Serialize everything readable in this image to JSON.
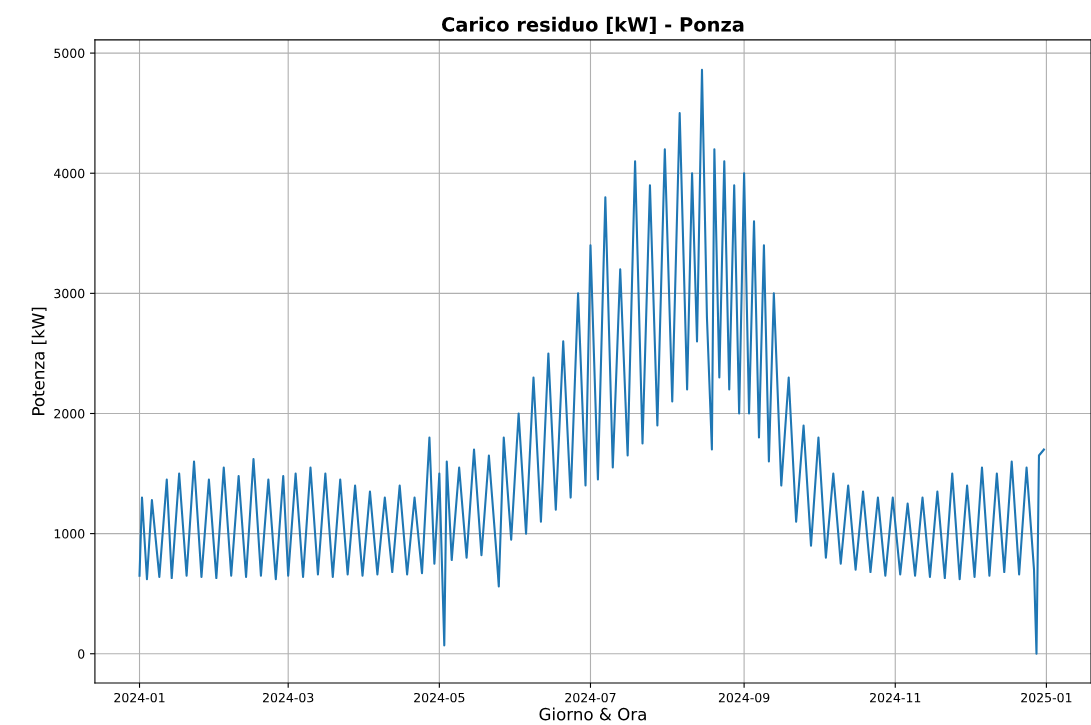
{
  "chart_data": {
    "type": "line",
    "title": "Carico residuo [kW] - Ponza",
    "xlabel": "Giorno & Ora",
    "ylabel": "Potenza [kW]",
    "x": [
      "2024-01-01",
      "2024-01-02",
      "2024-01-04",
      "2024-01-06",
      "2024-01-09",
      "2024-01-12",
      "2024-01-14",
      "2024-01-17",
      "2024-01-20",
      "2024-01-23",
      "2024-01-26",
      "2024-01-29",
      "2024-02-01",
      "2024-02-04",
      "2024-02-07",
      "2024-02-10",
      "2024-02-13",
      "2024-02-16",
      "2024-02-19",
      "2024-02-22",
      "2024-02-25",
      "2024-02-28",
      "2024-03-01",
      "2024-03-04",
      "2024-03-07",
      "2024-03-10",
      "2024-03-13",
      "2024-03-16",
      "2024-03-19",
      "2024-03-22",
      "2024-03-25",
      "2024-03-28",
      "2024-03-31",
      "2024-04-03",
      "2024-04-06",
      "2024-04-09",
      "2024-04-12",
      "2024-04-15",
      "2024-04-18",
      "2024-04-21",
      "2024-04-24",
      "2024-04-27",
      "2024-04-29",
      "2024-05-01",
      "2024-05-03",
      "2024-05-04",
      "2024-05-06",
      "2024-05-09",
      "2024-05-12",
      "2024-05-15",
      "2024-05-18",
      "2024-05-21",
      "2024-05-24",
      "2024-05-25",
      "2024-05-27",
      "2024-05-30",
      "2024-06-02",
      "2024-06-05",
      "2024-06-08",
      "2024-06-11",
      "2024-06-14",
      "2024-06-17",
      "2024-06-20",
      "2024-06-23",
      "2024-06-26",
      "2024-06-29",
      "2024-07-01",
      "2024-07-04",
      "2024-07-07",
      "2024-07-10",
      "2024-07-13",
      "2024-07-16",
      "2024-07-19",
      "2024-07-22",
      "2024-07-25",
      "2024-07-28",
      "2024-07-31",
      "2024-08-03",
      "2024-08-06",
      "2024-08-09",
      "2024-08-11",
      "2024-08-13",
      "2024-08-15",
      "2024-08-17",
      "2024-08-19",
      "2024-08-20",
      "2024-08-22",
      "2024-08-24",
      "2024-08-26",
      "2024-08-28",
      "2024-08-30",
      "2024-09-01",
      "2024-09-03",
      "2024-09-05",
      "2024-09-07",
      "2024-09-09",
      "2024-09-11",
      "2024-09-13",
      "2024-09-16",
      "2024-09-19",
      "2024-09-22",
      "2024-09-25",
      "2024-09-28",
      "2024-10-01",
      "2024-10-04",
      "2024-10-07",
      "2024-10-10",
      "2024-10-13",
      "2024-10-16",
      "2024-10-19",
      "2024-10-22",
      "2024-10-25",
      "2024-10-28",
      "2024-10-31",
      "2024-11-03",
      "2024-11-06",
      "2024-11-09",
      "2024-11-12",
      "2024-11-15",
      "2024-11-18",
      "2024-11-21",
      "2024-11-24",
      "2024-11-27",
      "2024-11-30",
      "2024-12-03",
      "2024-12-06",
      "2024-12-09",
      "2024-12-12",
      "2024-12-15",
      "2024-12-18",
      "2024-12-21",
      "2024-12-24",
      "2024-12-27",
      "2024-12-28",
      "2024-12-29",
      "2024-12-31"
    ],
    "series": [
      {
        "color": "#1f77b4",
        "values": [
          650,
          1300,
          620,
          1280,
          640,
          1450,
          630,
          1500,
          650,
          1600,
          640,
          1450,
          630,
          1550,
          650,
          1480,
          640,
          1620,
          650,
          1450,
          620,
          1480,
          650,
          1500,
          640,
          1550,
          660,
          1500,
          640,
          1450,
          660,
          1400,
          650,
          1350,
          660,
          1300,
          680,
          1400,
          660,
          1300,
          670,
          1800,
          750,
          1500,
          70,
          1600,
          780,
          1550,
          800,
          1700,
          820,
          1650,
          850,
          560,
          1800,
          950,
          2000,
          1000,
          2300,
          1100,
          2500,
          1200,
          2600,
          1300,
          3000,
          1400,
          3400,
          1450,
          3800,
          1550,
          3200,
          1650,
          4100,
          1750,
          3900,
          1900,
          4200,
          2100,
          4500,
          2200,
          4000,
          2600,
          4860,
          2800,
          1700,
          4200,
          2300,
          4100,
          2200,
          3900,
          2000,
          4000,
          2000,
          3600,
          1800,
          3400,
          1600,
          3000,
          1400,
          2300,
          1100,
          1900,
          900,
          1800,
          800,
          1500,
          750,
          1400,
          700,
          1350,
          680,
          1300,
          650,
          1300,
          660,
          1250,
          650,
          1300,
          640,
          1350,
          630,
          1500,
          620,
          1400,
          640,
          1550,
          650,
          1500,
          680,
          1600,
          660,
          1550,
          700,
          0,
          1650,
          1700
        ]
      }
    ],
    "xlim": [
      "2023-12-14",
      "2025-01-19"
    ],
    "xticks": [
      {
        "value": "2024-01-01",
        "label": "2024-01"
      },
      {
        "value": "2024-03-01",
        "label": "2024-03"
      },
      {
        "value": "2024-05-01",
        "label": "2024-05"
      },
      {
        "value": "2024-07-01",
        "label": "2024-07"
      },
      {
        "value": "2024-09-01",
        "label": "2024-09"
      },
      {
        "value": "2024-11-01",
        "label": "2024-11"
      },
      {
        "value": "2025-01-01",
        "label": "2025-01"
      }
    ],
    "ylim": [
      -243,
      5110
    ],
    "yticks": [
      0,
      1000,
      2000,
      3000,
      4000,
      5000
    ],
    "grid": true,
    "line_style": "solid",
    "marker": "none"
  }
}
